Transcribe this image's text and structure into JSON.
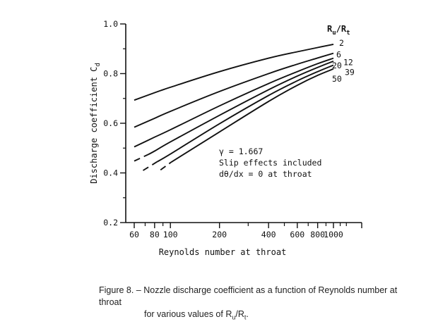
{
  "chart_data": {
    "type": "line",
    "title": "",
    "xlabel": "Reynolds number at throat",
    "ylabel": "Discharge coefficient C",
    "ylabel_subscript": "d",
    "x_scale": "log",
    "xlim": [
      50,
      1300
    ],
    "ylim": [
      0.2,
      1.0
    ],
    "x_ticks": [
      60,
      80,
      100,
      200,
      400,
      600,
      800,
      1000
    ],
    "x_tick_labels": [
      "60",
      "80",
      "100",
      "200",
      "400",
      "600",
      "800",
      "1000"
    ],
    "y_ticks": [
      0.2,
      0.4,
      0.6,
      0.8,
      1.0
    ],
    "y_tick_labels": [
      "0.2",
      "0.4",
      "0.6",
      "0.8",
      "1.0"
    ],
    "legend_title_main": "R",
    "legend_title_sub1": "u",
    "legend_title_mid": "/R",
    "legend_title_sub2": "t",
    "series": [
      {
        "name": "2",
        "dashed_to": null,
        "points": [
          [
            60,
            0.693
          ],
          [
            80,
            0.723
          ],
          [
            100,
            0.745
          ],
          [
            200,
            0.808
          ],
          [
            400,
            0.862
          ],
          [
            600,
            0.888
          ],
          [
            800,
            0.905
          ],
          [
            1000,
            0.918
          ]
        ]
      },
      {
        "name": "6",
        "dashed_to": null,
        "points": [
          [
            60,
            0.584
          ],
          [
            80,
            0.62
          ],
          [
            100,
            0.648
          ],
          [
            200,
            0.728
          ],
          [
            400,
            0.8
          ],
          [
            600,
            0.838
          ],
          [
            800,
            0.863
          ],
          [
            1000,
            0.882
          ]
        ]
      },
      {
        "name": "12",
        "dashed_to": null,
        "points": [
          [
            60,
            0.505
          ],
          [
            80,
            0.544
          ],
          [
            100,
            0.574
          ],
          [
            200,
            0.67
          ],
          [
            400,
            0.76
          ],
          [
            600,
            0.808
          ],
          [
            800,
            0.84
          ],
          [
            1000,
            0.862
          ]
        ]
      },
      {
        "name": "20",
        "dashed_to": 73,
        "points": [
          [
            60,
            0.448
          ],
          [
            73,
            0.474
          ],
          [
            80,
            0.488
          ],
          [
            100,
            0.525
          ],
          [
            200,
            0.632
          ],
          [
            400,
            0.735
          ],
          [
            600,
            0.79
          ],
          [
            800,
            0.825
          ],
          [
            1000,
            0.85
          ]
        ]
      },
      {
        "name": "39",
        "dashed_to": 83,
        "points": [
          [
            68,
            0.41
          ],
          [
            83,
            0.445
          ],
          [
            100,
            0.476
          ],
          [
            200,
            0.598
          ],
          [
            400,
            0.712
          ],
          [
            600,
            0.771
          ],
          [
            800,
            0.808
          ],
          [
            1000,
            0.834
          ]
        ]
      },
      {
        "name": "50",
        "dashed_to": 101,
        "points": [
          [
            87,
            0.412
          ],
          [
            101,
            0.443
          ],
          [
            200,
            0.565
          ],
          [
            400,
            0.688
          ],
          [
            600,
            0.753
          ],
          [
            800,
            0.793
          ],
          [
            1000,
            0.819
          ]
        ]
      }
    ],
    "annotation_lines": [
      "γ = 1.667",
      "Slip effects included",
      "dθ/dx = 0 at throat"
    ]
  },
  "caption": {
    "line1": "Figure 8. – Nozzle discharge coefficient as a function of Reynolds number at throat",
    "line2_prefix": "for various values of R",
    "line2_sub1": "u",
    "line2_mid": "/R",
    "line2_sub2": "t",
    "line2_suffix": "."
  }
}
